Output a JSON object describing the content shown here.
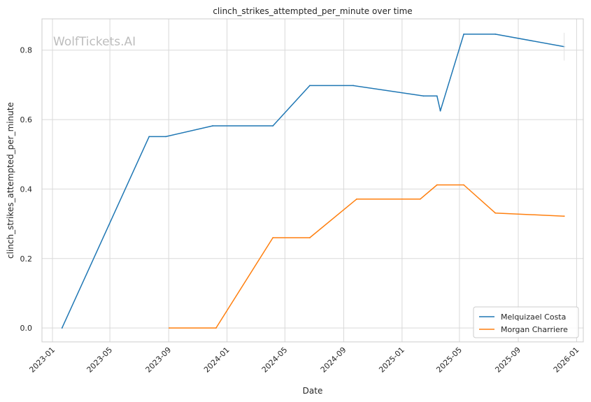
{
  "chart_data": {
    "type": "line",
    "title": "clinch_strikes_attempted_per_minute over time",
    "xlabel": "Date",
    "ylabel": "clinch_strikes_attempted_per_minute",
    "watermark": "WolfTickets.AI",
    "x_ticks": [
      "2023-01",
      "2023-05",
      "2023-09",
      "2024-01",
      "2024-05",
      "2024-09",
      "2025-01",
      "2025-05",
      "2025-09",
      "2026-01"
    ],
    "y_ticks": [
      "0.0",
      "0.2",
      "0.4",
      "0.6",
      "0.8"
    ],
    "xlim": [
      "2022-12-10",
      "2026-01-15"
    ],
    "ylim": [
      -0.04,
      0.89
    ],
    "grid": true,
    "legend_position": "lower-right",
    "series": [
      {
        "name": "Melquizael Costa",
        "color": "#1f77b4",
        "points": [
          [
            "2023-01-21",
            0.0
          ],
          [
            "2023-07-22",
            0.551
          ],
          [
            "2023-08-26",
            0.551
          ],
          [
            "2023-12-02",
            0.582
          ],
          [
            "2024-04-06",
            0.582
          ],
          [
            "2024-06-22",
            0.698
          ],
          [
            "2024-09-21",
            0.698
          ],
          [
            "2025-02-15",
            0.668
          ],
          [
            "2025-03-15",
            0.668
          ],
          [
            "2025-03-22",
            0.625
          ],
          [
            "2025-05-10",
            0.846
          ],
          [
            "2025-07-15",
            0.846
          ],
          [
            "2025-12-06",
            0.81
          ]
        ]
      },
      {
        "name": "Morgan Charriere",
        "color": "#ff7f0e",
        "points": [
          [
            "2023-09-02",
            0.0
          ],
          [
            "2023-12-09",
            0.0
          ],
          [
            "2024-04-06",
            0.26
          ],
          [
            "2024-06-22",
            0.26
          ],
          [
            "2024-09-28",
            0.371
          ],
          [
            "2025-02-08",
            0.371
          ],
          [
            "2025-03-15",
            0.412
          ],
          [
            "2025-05-10",
            0.412
          ],
          [
            "2025-07-15",
            0.331
          ],
          [
            "2025-12-06",
            0.322
          ]
        ]
      }
    ]
  }
}
